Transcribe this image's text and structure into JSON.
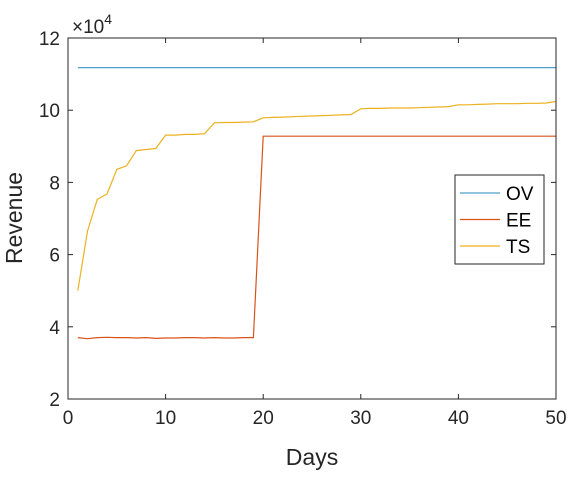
{
  "chart_data": {
    "type": "line",
    "title": "",
    "xlabel": "Days",
    "ylabel": "Revenue",
    "xlim": [
      0,
      50
    ],
    "ylim": [
      20000,
      120000
    ],
    "xticks": [
      0,
      10,
      20,
      30,
      40,
      50
    ],
    "yticks": [
      20000,
      40000,
      60000,
      80000,
      100000,
      120000
    ],
    "ytick_labels": [
      "2",
      "4",
      "6",
      "8",
      "10",
      "12"
    ],
    "y_exponent": {
      "base": "×10",
      "power": "4"
    },
    "grid": false,
    "legend_position": "right",
    "series": [
      {
        "name": "OV",
        "color": "#4f9fc9",
        "x": [
          1,
          50
        ],
        "y": [
          111800,
          111800
        ]
      },
      {
        "name": "EE",
        "color": "#d95319",
        "x": [
          1,
          2,
          3,
          4,
          5,
          6,
          7,
          8,
          9,
          10,
          11,
          12,
          13,
          14,
          15,
          16,
          17,
          18,
          19,
          20,
          50
        ],
        "y": [
          37000,
          36700,
          37000,
          37100,
          37000,
          37000,
          36900,
          37000,
          36800,
          36900,
          36900,
          37000,
          37000,
          36900,
          37000,
          36900,
          36900,
          37000,
          37000,
          92800,
          92800
        ]
      },
      {
        "name": "TS",
        "color": "#edb120",
        "x": [
          1,
          2,
          3,
          4,
          5,
          6,
          7,
          8,
          9,
          10,
          11,
          12,
          13,
          14,
          15,
          16,
          17,
          18,
          19,
          20,
          21,
          22,
          23,
          24,
          25,
          26,
          27,
          28,
          29,
          30,
          31,
          32,
          33,
          34,
          35,
          36,
          37,
          38,
          39,
          40,
          41,
          42,
          43,
          44,
          45,
          46,
          47,
          48,
          49,
          50
        ],
        "y": [
          50000,
          66500,
          75300,
          76800,
          83600,
          84600,
          88800,
          89100,
          89400,
          93100,
          93100,
          93300,
          93300,
          93500,
          96500,
          96600,
          96600,
          96700,
          96800,
          97900,
          98000,
          98100,
          98200,
          98300,
          98400,
          98500,
          98600,
          98700,
          98800,
          100400,
          100500,
          100500,
          100600,
          100600,
          100600,
          100700,
          100800,
          100900,
          101000,
          101500,
          101500,
          101600,
          101700,
          101800,
          101800,
          101800,
          101900,
          101900,
          102000,
          102400
        ]
      }
    ]
  }
}
